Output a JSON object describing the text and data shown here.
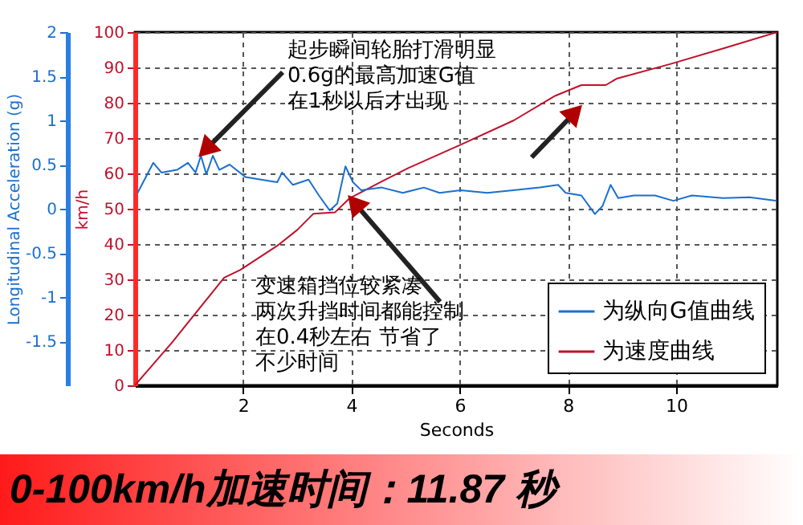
{
  "chart_data": {
    "type": "line",
    "title": "0-100km/h加速时间：11.87 秒",
    "xlabel": "Seconds",
    "ylabel": "km/h",
    "y2label": "Longitudinal Acceleration (g)",
    "annotations": [
      {
        "text": "起步瞬间轮胎打滑明显",
        "x": 1.22,
        "y": 64.9
      },
      "0.6g的最高加速G值",
      "在1秒以后才出现",
      {
        "text": "变速箱挡位较紧凑",
        "x": 3.97,
        "y": 53
      },
      "两次升挡时间都能控制",
      "在0.4秒左右 节省了",
      "不少时间"
    ],
    "xlim": [
      0,
      11.87
    ],
    "xticks": [
      2,
      4,
      6,
      8,
      10
    ],
    "ylim": [
      0,
      100
    ],
    "yticks": [
      0,
      10,
      20,
      30,
      40,
      50,
      60,
      70,
      80,
      90,
      100
    ],
    "y2lim": [
      -2,
      2
    ],
    "y2ticks": [
      -1.5,
      -1,
      -0.5,
      0,
      0.5,
      1,
      1.5,
      2
    ],
    "grid": true,
    "legend": "bottom right",
    "series": [
      {
        "name": "为纵向G值曲线",
        "color": "#1a6fd0",
        "axis": "y2",
        "x": [
          0.05,
          0.34,
          0.49,
          0.78,
          0.98,
          1.12,
          1.22,
          1.32,
          1.44,
          1.56,
          1.75,
          2.04,
          2.33,
          2.63,
          2.72,
          2.92,
          3.21,
          3.4,
          3.6,
          3.74,
          3.89,
          4.03,
          4.18,
          4.56,
          4.95,
          5.34,
          5.63,
          6.02,
          6.51,
          6.99,
          7.48,
          7.82,
          7.96,
          8.25,
          8.5,
          8.64,
          8.79,
          8.93,
          9.22,
          9.61,
          9.95,
          10.29,
          10.87,
          11.36,
          11.84
        ],
        "values": [
          0.18,
          0.52,
          0.41,
          0.44,
          0.52,
          0.41,
          0.6,
          0.39,
          0.6,
          0.44,
          0.5,
          0.36,
          0.33,
          0.3,
          0.41,
          0.27,
          0.33,
          0.15,
          -0.02,
          0.06,
          0.48,
          0.3,
          0.21,
          0.24,
          0.18,
          0.24,
          0.18,
          0.21,
          0.18,
          0.21,
          0.24,
          0.27,
          0.18,
          0.15,
          -0.06,
          0.03,
          0.27,
          0.12,
          0.15,
          0.15,
          0.09,
          0.15,
          0.12,
          0.13,
          0.09
        ]
      },
      {
        "name": "为速度曲线",
        "color": "#c0102a",
        "x": [
          0,
          0.68,
          1.65,
          1.95,
          2.63,
          3.0,
          3.3,
          3.7,
          3.97,
          4.56,
          5.05,
          6.0,
          7.0,
          7.77,
          8.25,
          8.7,
          8.9,
          9.9,
          10.9,
          11.87
        ],
        "values": [
          0,
          12,
          30.5,
          32.7,
          39.5,
          44,
          48.6,
          49,
          53,
          57.7,
          61.5,
          68,
          75,
          82,
          85,
          85,
          86.8,
          91,
          95.5,
          100
        ]
      }
    ]
  }
}
